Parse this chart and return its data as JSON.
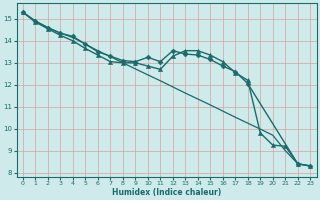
{
  "background_color": "#ceeaea",
  "grid_color": "#b8d8d8",
  "line_color": "#1a6b6b",
  "xlabel": "Humidex (Indice chaleur)",
  "xlim": [
    -0.5,
    23.5
  ],
  "ylim": [
    7.8,
    15.7
  ],
  "yticks": [
    8,
    9,
    10,
    11,
    12,
    13,
    14,
    15
  ],
  "xticks": [
    0,
    1,
    2,
    3,
    4,
    5,
    6,
    7,
    8,
    9,
    10,
    11,
    12,
    13,
    14,
    15,
    16,
    17,
    18,
    19,
    20,
    21,
    22,
    23
  ],
  "series": [
    {
      "x": [
        0,
        1,
        2,
        3,
        4,
        5,
        6,
        7,
        8,
        9,
        10,
        11,
        12,
        13,
        14,
        15,
        16,
        17,
        18,
        22,
        23
      ],
      "y": [
        15.3,
        14.9,
        14.6,
        14.35,
        14.2,
        13.85,
        13.5,
        13.3,
        13.1,
        13.05,
        13.25,
        13.05,
        13.55,
        13.4,
        13.35,
        13.15,
        12.85,
        12.6,
        12.05,
        8.4,
        8.3
      ],
      "marker": "D",
      "markersize": 2.5,
      "linewidth": 1.0
    },
    {
      "x": [
        0,
        1,
        2,
        3,
        4,
        5,
        6,
        7,
        8,
        9,
        10,
        11,
        12,
        13,
        14,
        15,
        16,
        17,
        18,
        19,
        20,
        21,
        22,
        23
      ],
      "y": [
        15.3,
        14.9,
        14.6,
        14.35,
        14.15,
        13.85,
        13.55,
        13.28,
        13.0,
        12.72,
        12.45,
        12.18,
        11.9,
        11.62,
        11.35,
        11.08,
        10.8,
        10.52,
        10.25,
        9.98,
        9.7,
        9.0,
        8.4,
        8.3
      ],
      "marker": null,
      "markersize": 0,
      "linewidth": 0.9
    },
    {
      "x": [
        0,
        1,
        2,
        3,
        4,
        5,
        6,
        7,
        8,
        9,
        10,
        11,
        12,
        13,
        14,
        15,
        16,
        17,
        18,
        19,
        20,
        21,
        22,
        23
      ],
      "y": [
        15.3,
        14.85,
        14.55,
        14.25,
        14.0,
        13.65,
        13.35,
        13.05,
        13.0,
        13.0,
        12.85,
        12.7,
        13.3,
        13.55,
        13.55,
        13.35,
        13.05,
        12.55,
        12.2,
        9.8,
        9.25,
        9.2,
        8.4,
        8.3
      ],
      "marker": "^",
      "markersize": 3,
      "linewidth": 1.0
    }
  ]
}
